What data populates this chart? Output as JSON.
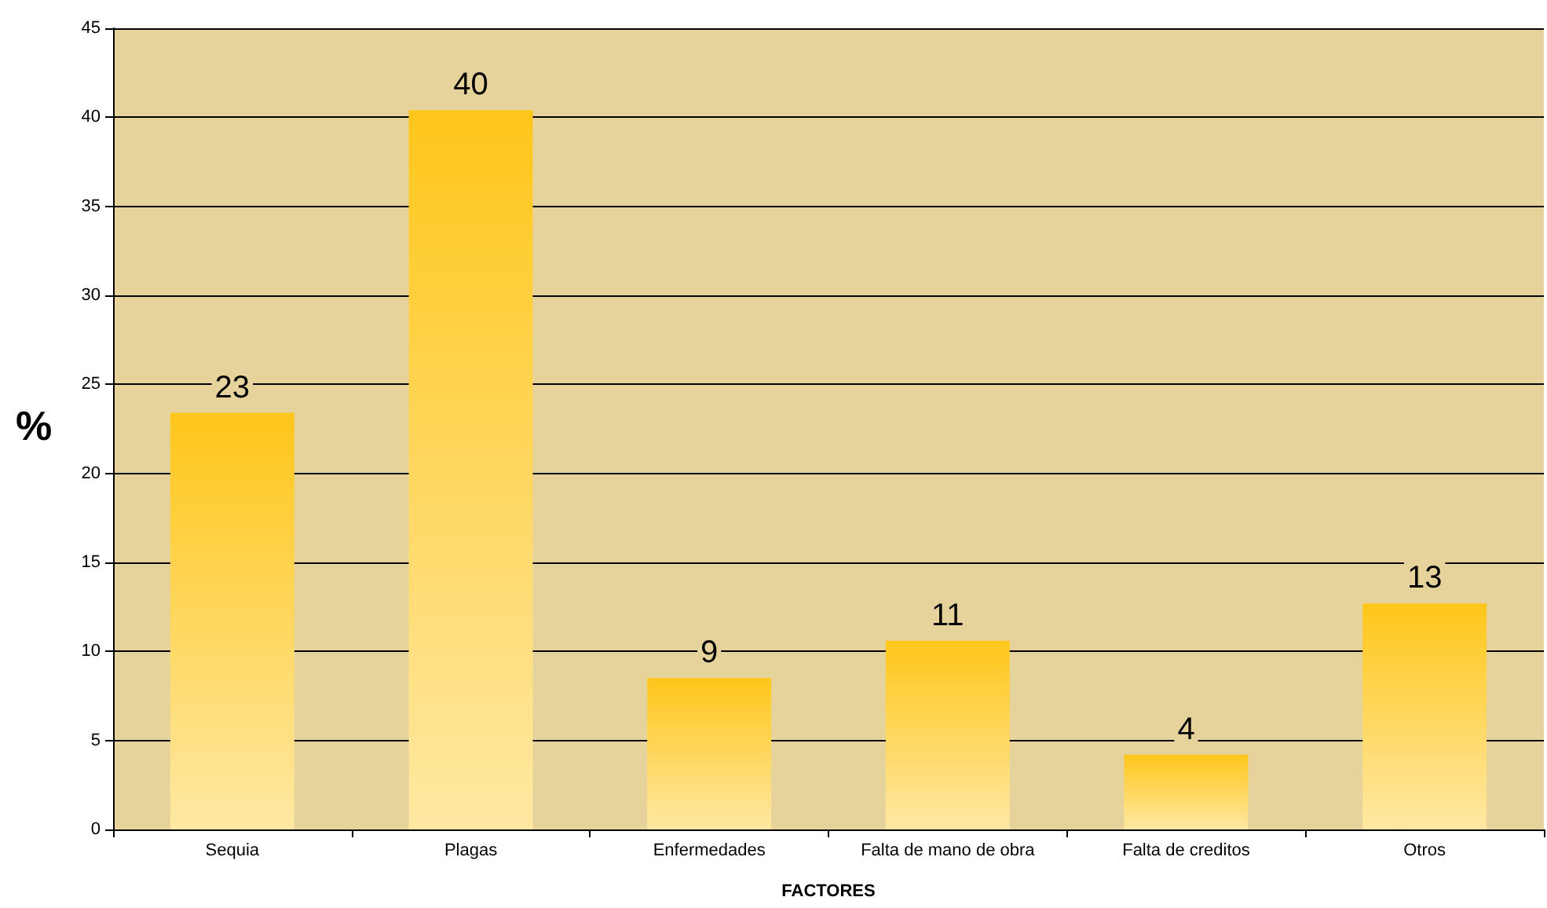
{
  "chart_data": {
    "type": "bar",
    "xlabel": "FACTORES",
    "ylabel": "%",
    "categories": [
      "Sequia",
      "Plagas",
      "Enfermedades",
      "Falta de mano de obra",
      "Falta de creditos",
      "Otros"
    ],
    "values": [
      23.4,
      40.4,
      8.5,
      10.6,
      4.2,
      12.7
    ],
    "value_labels": [
      "23",
      "40",
      "9",
      "11",
      "4",
      "13"
    ],
    "color": "#ffc61a",
    "ylim": [
      0,
      45
    ],
    "yticks": [
      0,
      5,
      10,
      15,
      20,
      25,
      30,
      35,
      40,
      45
    ],
    "grid": "y"
  }
}
